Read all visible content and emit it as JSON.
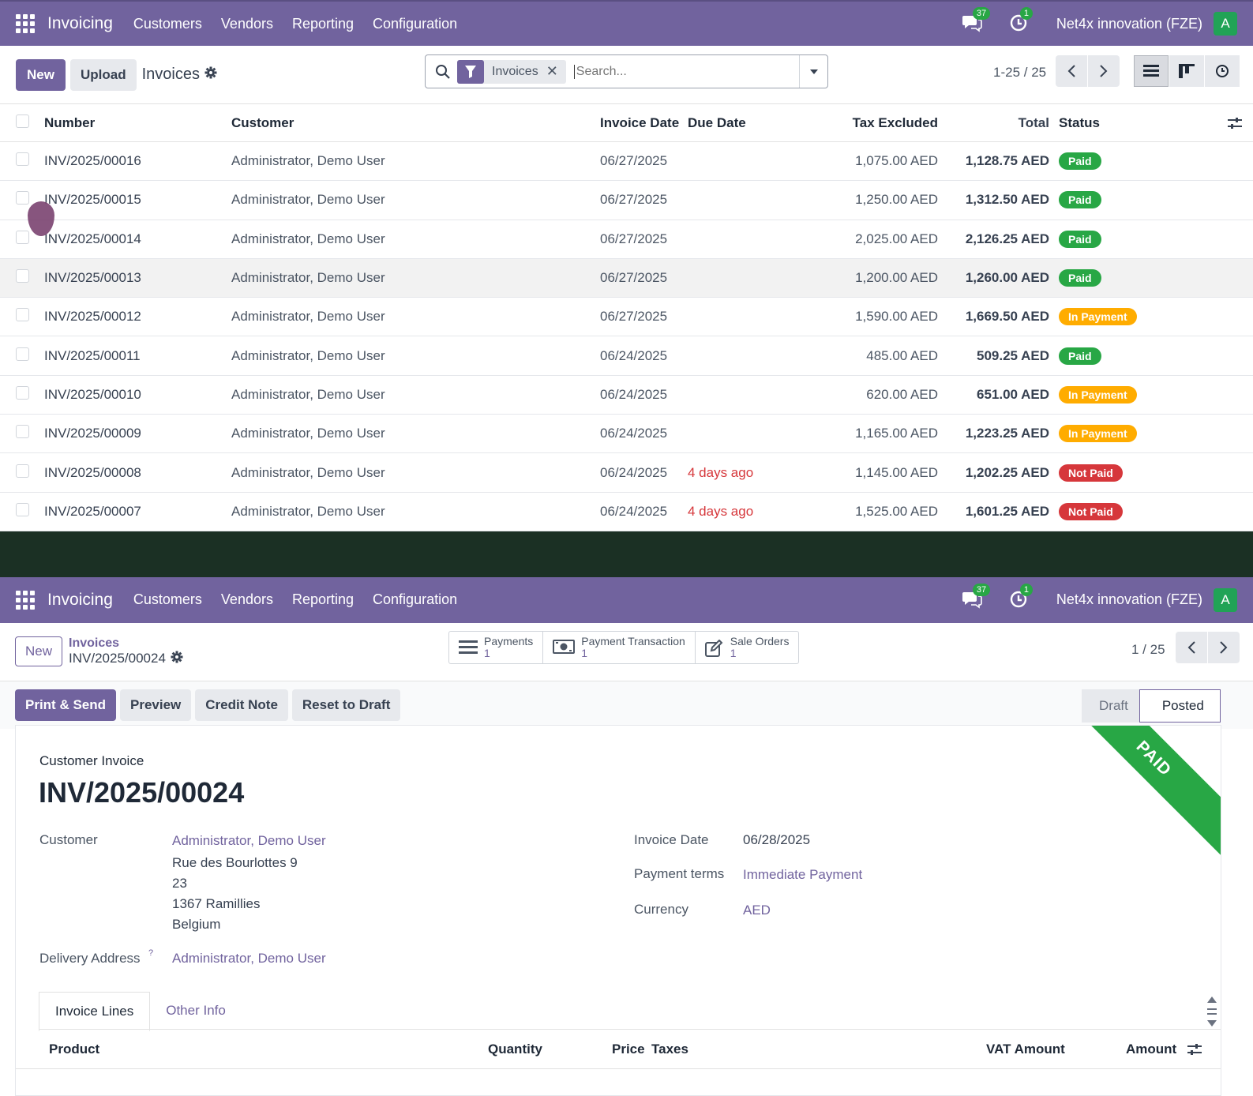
{
  "colors": {
    "brand": "#71639e",
    "paid": "#28a745",
    "in_payment": "#ffac00",
    "not_paid": "#d6373b",
    "overdue_text": "#d6373b"
  },
  "navbar": {
    "app_name": "Invoicing",
    "menu": [
      "Customers",
      "Vendors",
      "Reporting",
      "Configuration"
    ],
    "messages_count": "37",
    "activities_count": "1",
    "company": "Net4x innovation (FZE)",
    "avatar_letter": "A"
  },
  "list_view": {
    "new_label": "New",
    "upload_label": "Upload",
    "title": "Invoices",
    "search": {
      "facet": "Invoices",
      "placeholder": "Search..."
    },
    "pager": "1-25 / 25",
    "columns": {
      "number": "Number",
      "customer": "Customer",
      "invoice_date": "Invoice Date",
      "due_date": "Due Date",
      "tax_excluded": "Tax Excluded",
      "total": "Total",
      "status": "Status"
    },
    "rows": [
      {
        "number": "INV/2025/00016",
        "customer": "Administrator, Demo User",
        "invoice_date": "06/27/2025",
        "due_date": "",
        "tax_excluded": "1,075.00 AED",
        "total": "1,128.75 AED",
        "status": "Paid"
      },
      {
        "number": "INV/2025/00015",
        "customer": "Administrator, Demo User",
        "invoice_date": "06/27/2025",
        "due_date": "",
        "tax_excluded": "1,250.00 AED",
        "total": "1,312.50 AED",
        "status": "Paid"
      },
      {
        "number": "INV/2025/00014",
        "customer": "Administrator, Demo User",
        "invoice_date": "06/27/2025",
        "due_date": "",
        "tax_excluded": "2,025.00 AED",
        "total": "2,126.25 AED",
        "status": "Paid"
      },
      {
        "number": "INV/2025/00013",
        "customer": "Administrator, Demo User",
        "invoice_date": "06/27/2025",
        "due_date": "",
        "tax_excluded": "1,200.00 AED",
        "total": "1,260.00 AED",
        "status": "Paid"
      },
      {
        "number": "INV/2025/00012",
        "customer": "Administrator, Demo User",
        "invoice_date": "06/27/2025",
        "due_date": "",
        "tax_excluded": "1,590.00 AED",
        "total": "1,669.50 AED",
        "status": "In Payment"
      },
      {
        "number": "INV/2025/00011",
        "customer": "Administrator, Demo User",
        "invoice_date": "06/24/2025",
        "due_date": "",
        "tax_excluded": "485.00 AED",
        "total": "509.25 AED",
        "status": "Paid"
      },
      {
        "number": "INV/2025/00010",
        "customer": "Administrator, Demo User",
        "invoice_date": "06/24/2025",
        "due_date": "",
        "tax_excluded": "620.00 AED",
        "total": "651.00 AED",
        "status": "In Payment"
      },
      {
        "number": "INV/2025/00009",
        "customer": "Administrator, Demo User",
        "invoice_date": "06/24/2025",
        "due_date": "",
        "tax_excluded": "1,165.00 AED",
        "total": "1,223.25 AED",
        "status": "In Payment"
      },
      {
        "number": "INV/2025/00008",
        "customer": "Administrator, Demo User",
        "invoice_date": "06/24/2025",
        "due_date": "4 days ago",
        "tax_excluded": "1,145.00 AED",
        "total": "1,202.25 AED",
        "status": "Not Paid"
      },
      {
        "number": "INV/2025/00007",
        "customer": "Administrator, Demo User",
        "invoice_date": "06/24/2025",
        "due_date": "4 days ago",
        "tax_excluded": "1,525.00 AED",
        "total": "1,601.25 AED",
        "status": "Not Paid"
      }
    ]
  },
  "form_view": {
    "new_label": "New",
    "breadcrumb_parent": "Invoices",
    "breadcrumb_current": "INV/2025/00024",
    "smart_buttons": [
      {
        "label": "Payments",
        "count": "1",
        "icon": "list-icon"
      },
      {
        "label": "Payment Transaction",
        "count": "1",
        "icon": "money-icon"
      },
      {
        "label": "Sale Orders",
        "count": "1",
        "icon": "edit-icon"
      }
    ],
    "pager": "1 / 25",
    "actions": {
      "print_send": "Print & Send",
      "preview": "Preview",
      "credit_note": "Credit Note",
      "reset_draft": "Reset to Draft"
    },
    "stages": {
      "draft": "Draft",
      "posted": "Posted"
    },
    "ribbon": "PAID",
    "document_type": "Customer Invoice",
    "document_name": "INV/2025/00024",
    "customer_label": "Customer",
    "customer_name": "Administrator, Demo User",
    "address": [
      "Rue des Bourlottes 9",
      "23",
      "1367 Ramillies",
      "Belgium"
    ],
    "delivery_label": "Delivery Address",
    "delivery_help": "?",
    "delivery_value": "Administrator, Demo User",
    "invoice_date_label": "Invoice Date",
    "invoice_date": "06/28/2025",
    "payment_terms_label": "Payment terms",
    "payment_terms": "Immediate Payment",
    "currency_label": "Currency",
    "currency": "AED",
    "tabs": [
      "Invoice Lines",
      "Other Info"
    ],
    "line_columns": {
      "product": "Product",
      "quantity": "Quantity",
      "price": "Price",
      "taxes": "Taxes",
      "vat_amount": "VAT Amount",
      "amount": "Amount"
    }
  }
}
